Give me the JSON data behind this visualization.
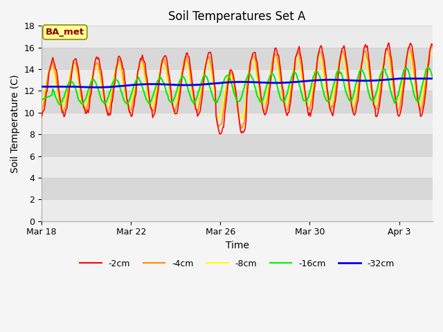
{
  "title": "Soil Temperatures Set A",
  "xlabel": "Time",
  "ylabel": "Soil Temperature (C)",
  "ylim": [
    0,
    18
  ],
  "yticks": [
    0,
    2,
    4,
    6,
    8,
    10,
    12,
    14,
    16,
    18
  ],
  "annotation_text": "BA_met",
  "annotation_color": "#8B0000",
  "annotation_bg": "#FFFF99",
  "annotation_border": "#8B8B00",
  "series_colors": {
    "-2cm": "#FF0000",
    "-4cm": "#FF8C00",
    "-8cm": "#FFFF00",
    "-16cm": "#00EE00",
    "-32cm": "#0000EE"
  },
  "bg_color": "#F5F5F5",
  "plot_bg_light": "#EBEBEB",
  "plot_bg_dark": "#D8D8D8",
  "x_tick_labels": [
    "Mar 18",
    "Mar 22",
    "Mar 26",
    "Mar 30",
    "Apr 3"
  ],
  "x_tick_positions": [
    0,
    4,
    8,
    12,
    16
  ],
  "n_days": 17.5,
  "title_fontsize": 12,
  "tick_fontsize": 9,
  "label_fontsize": 10,
  "legend_fontsize": 9
}
